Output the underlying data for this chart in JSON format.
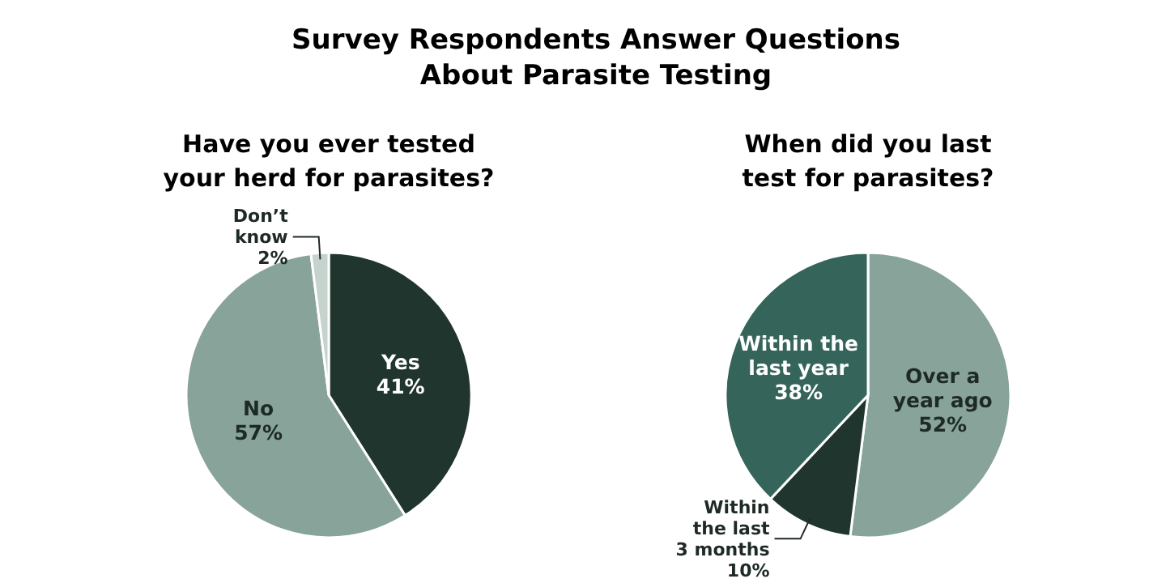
{
  "chart_data": [
    {
      "type": "other",
      "title": "Survey Respondents Answer Questions About Parasite Testing"
    },
    {
      "type": "pie",
      "title": "Have you ever tested your herd for parasites?",
      "categories": [
        "Yes",
        "No",
        "Don’t know"
      ],
      "values": [
        41,
        57,
        2
      ],
      "value_labels": [
        "41%",
        "57%",
        "2%"
      ],
      "colors": [
        "#20352e",
        "#87a39a",
        "#c5d3cc"
      ]
    },
    {
      "type": "pie",
      "title": "When did you last test for parasites?",
      "categories": [
        "Over a year ago",
        "Within the last 3 months",
        "Within the last year"
      ],
      "values": [
        52,
        10,
        38
      ],
      "value_labels": [
        "52%",
        "10%",
        "38%"
      ],
      "colors": [
        "#87a39a",
        "#20352e",
        "#34645a"
      ]
    }
  ]
}
